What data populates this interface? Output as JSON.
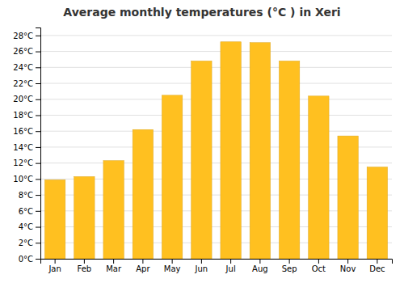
{
  "chart_data": {
    "type": "bar",
    "title": "Average monthly temperatures (°C ) in Xeri",
    "categories": [
      "Jan",
      "Feb",
      "Mar",
      "Apr",
      "May",
      "Jun",
      "Jul",
      "Aug",
      "Sep",
      "Oct",
      "Nov",
      "Dec"
    ],
    "values": [
      9.9,
      10.3,
      12.3,
      16.2,
      20.5,
      24.8,
      27.2,
      27.1,
      24.8,
      20.4,
      15.4,
      11.5
    ],
    "color": "#FFC020",
    "ylim": [
      0,
      29
    ],
    "yticks": [
      {
        "value": 0,
        "label": "0°C"
      },
      {
        "value": 2,
        "label": "2°C"
      },
      {
        "value": 4,
        "label": "4°C"
      },
      {
        "value": 6,
        "label": "6°C"
      },
      {
        "value": 8,
        "label": "8°C"
      },
      {
        "value": 10,
        "label": "10°C"
      },
      {
        "value": 12,
        "label": "12°C"
      },
      {
        "value": 14,
        "label": "14°C"
      },
      {
        "value": 16,
        "label": "16°C"
      },
      {
        "value": 18,
        "label": "18°C"
      },
      {
        "value": 20,
        "label": "20°C"
      },
      {
        "value": 22,
        "label": "22°C"
      },
      {
        "value": 24,
        "label": "24°C"
      },
      {
        "value": 26,
        "label": "26°C"
      },
      {
        "value": 28,
        "label": "28°C"
      }
    ],
    "grid": true
  }
}
